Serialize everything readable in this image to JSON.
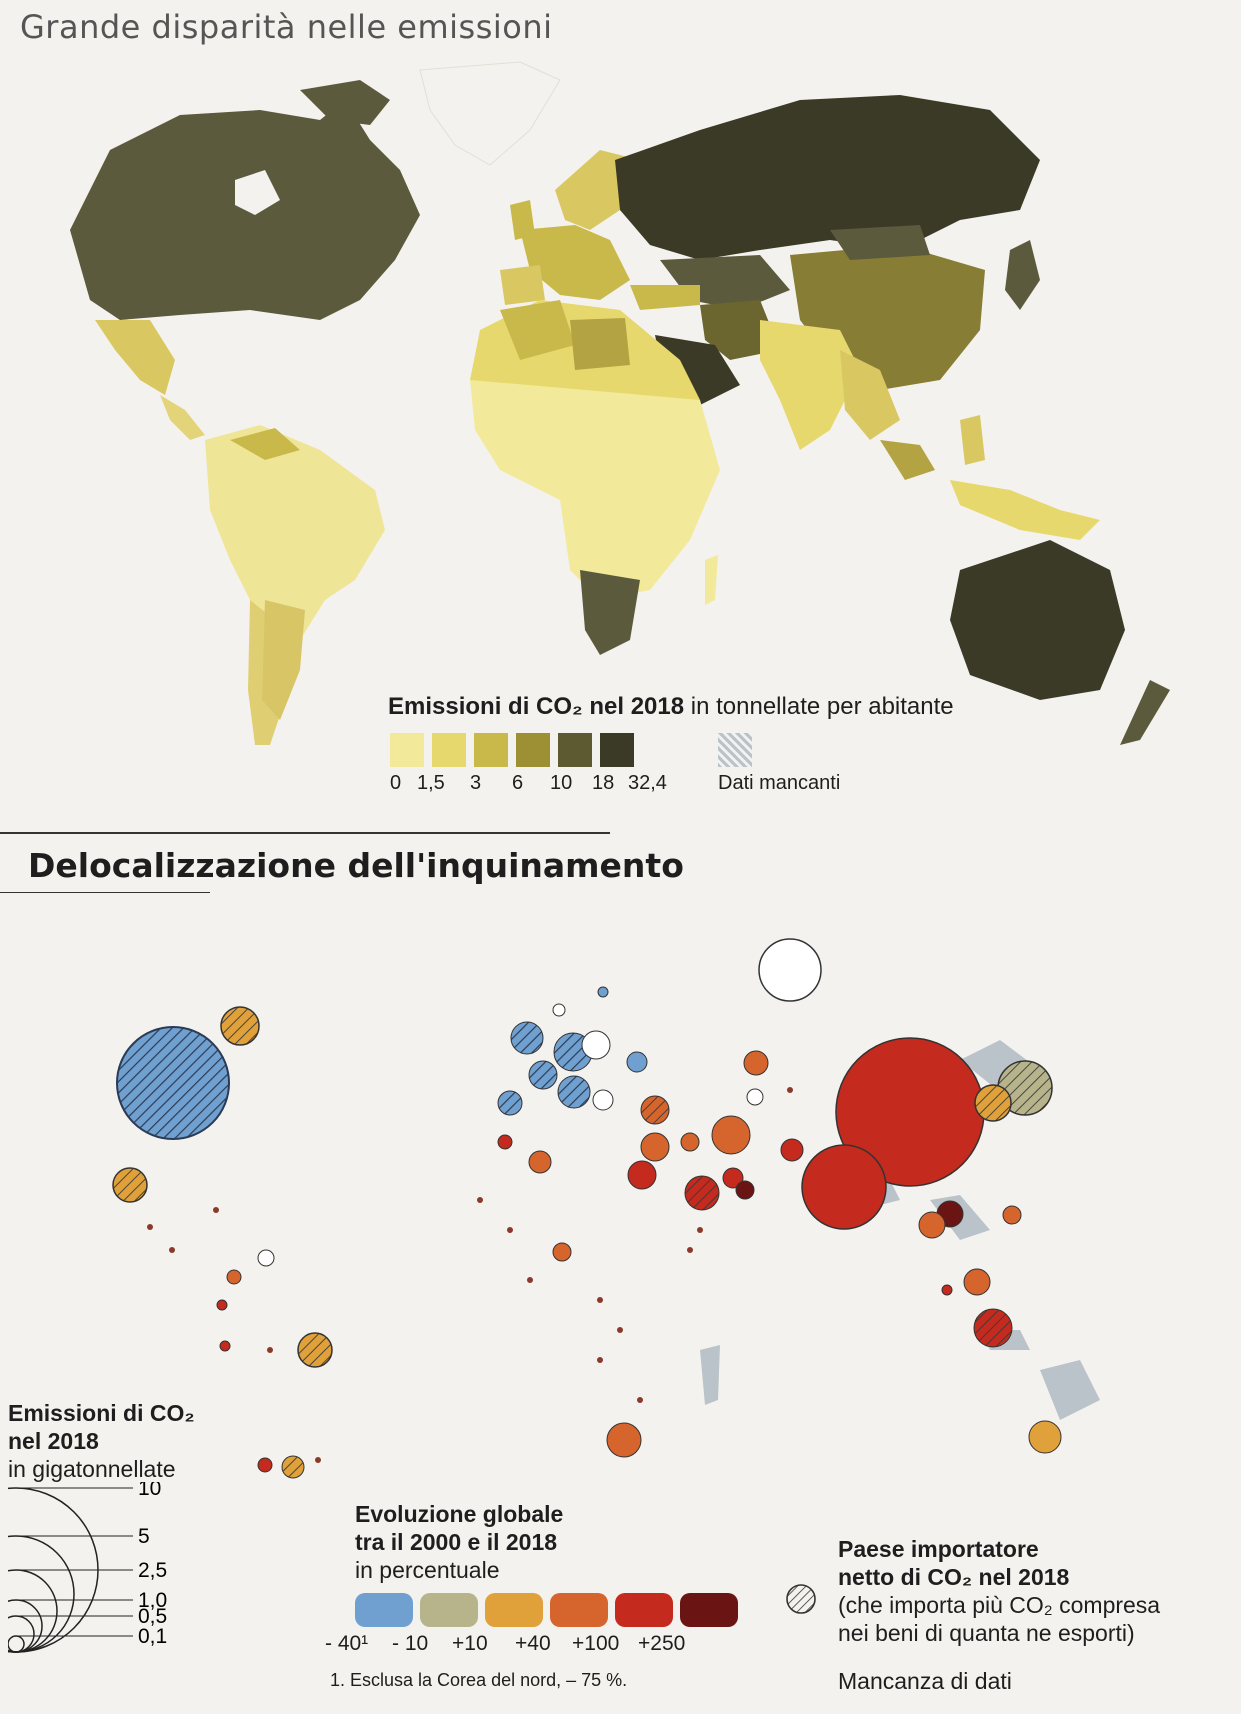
{
  "map1": {
    "title": "Grande disparità nelle emissioni",
    "legend": {
      "title_bold": "Emissioni di CO₂ nel 2018",
      "title_rest": " in tonnellate per abitante",
      "ticks": [
        "0",
        "1,5",
        "3",
        "6",
        "10",
        "18",
        "32,4"
      ],
      "colors": [
        "#f2ea9a",
        "#e6d86c",
        "#c9b84a",
        "#9c8f34",
        "#5d5930",
        "#3b3a26"
      ],
      "missing_label": "Dati mancanti",
      "missing_color": "#b9c3c9"
    }
  },
  "map2": {
    "title": "Delocalizzazione dell'inquinamento",
    "size_legend": {
      "title_bold_1": "Emissioni di CO₂",
      "title_bold_2": "nel 2018",
      "title_rest": "in gigatonnellate",
      "values": [
        "10",
        "5",
        "2,5",
        "1,0",
        "0,5",
        "0,1"
      ]
    },
    "evolution_legend": {
      "title_bold_1": "Evoluzione globale",
      "title_bold_2": "tra il 2000 e il 2018",
      "title_rest": "in percentuale",
      "labels": [
        "- 40¹",
        "- 10",
        "+10",
        "+40",
        "+100",
        "+250"
      ],
      "colors": [
        "#6fa0cf",
        "#b7b38a",
        "#e0a03a",
        "#d6652d",
        "#c42a1e",
        "#6b1414"
      ],
      "footnote": "1. Esclusa la Corea del nord, – 75 %."
    },
    "importer_legend": {
      "title_bold_1": "Paese importatore",
      "title_bold_2": "netto di CO₂ nel 2018",
      "desc_1": "(che importa più CO₂ compresa",
      "desc_2": "nei beni di quanta ne esporti)",
      "no_data": "Mancanza di dati"
    }
  }
}
